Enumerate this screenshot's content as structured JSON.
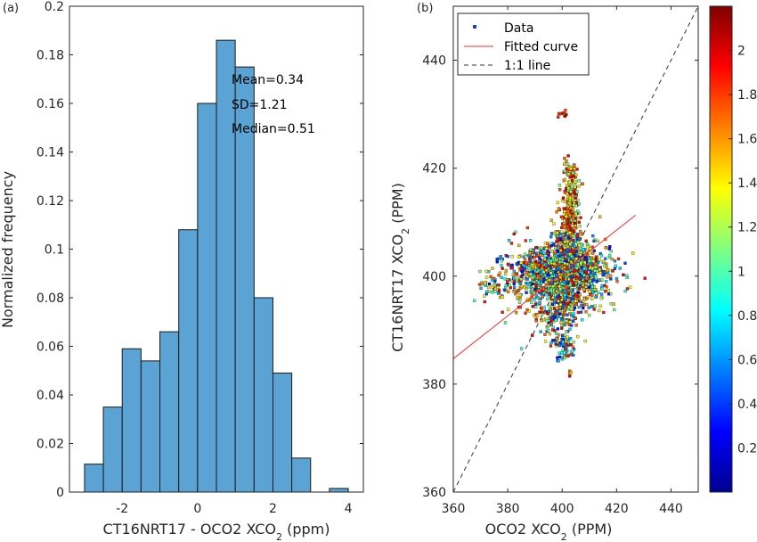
{
  "chart_data": [
    {
      "panel_label": "(a)",
      "type": "bar",
      "xlabel_main": "CT16NRT17 - OCO2 XCO",
      "xlabel_sub": "2",
      "xlabel_unit": " (ppm)",
      "ylabel": "Normalized frequency",
      "xlim": [
        -3.4,
        4.4
      ],
      "ylim": [
        0,
        0.2
      ],
      "xticks": [
        -2,
        0,
        2,
        4
      ],
      "xtick_labels": [
        "-2",
        "0",
        "2",
        "4"
      ],
      "yticks": [
        0,
        0.02,
        0.04,
        0.06,
        0.08,
        0.1,
        0.12,
        0.14,
        0.16,
        0.18,
        0.2
      ],
      "ytick_labels": [
        "0",
        "0.02",
        "0.04",
        "0.06",
        "0.08",
        "0.1",
        "0.12",
        "0.14",
        "0.16",
        "0.18",
        "0.2"
      ],
      "bin_edges": [
        -3.0,
        -2.5,
        -2.0,
        -1.5,
        -1.0,
        -0.5,
        0.0,
        0.5,
        1.0,
        1.5,
        2.0,
        2.5,
        3.0,
        3.5,
        4.0
      ],
      "values": [
        0.0115,
        0.035,
        0.059,
        0.054,
        0.066,
        0.108,
        0.16,
        0.186,
        0.175,
        0.08,
        0.049,
        0.014,
        0,
        0.0015
      ],
      "annotations": [
        "Mean=0.34",
        "SD=1.21",
        "Median=0.51"
      ],
      "bar_color": "#5ba3d4",
      "grid": false
    },
    {
      "panel_label": "(b)",
      "type": "scatter",
      "xlabel_main": "OCO2 XCO",
      "xlabel_sub": "2",
      "xlabel_unit": "  (PPM)",
      "ylabel_main": "CT16NRT17 XCO",
      "ylabel_sub": "2",
      "ylabel_unit": "  (PPM)",
      "xlim": [
        360,
        450
      ],
      "ylim": [
        360,
        450
      ],
      "xticks": [
        360,
        380,
        400,
        420,
        440
      ],
      "xtick_labels": [
        "360",
        "380",
        "400",
        "420",
        "440"
      ],
      "yticks": [
        360,
        380,
        400,
        420,
        440
      ],
      "ytick_labels": [
        "360",
        "380",
        "400",
        "420",
        "440"
      ],
      "fitted_curve": {
        "x": [
          360,
          427
        ],
        "y": [
          384.7,
          411.3
        ]
      },
      "one_to_one": {
        "x": [
          360,
          450
        ],
        "y": [
          360,
          450
        ]
      },
      "legend": [
        "Data",
        "Fitted curve",
        "1:1 line"
      ],
      "legend_position": "top-left",
      "colorbar": {
        "range": [
          0,
          2.2
        ],
        "ticks": [
          0.2,
          0.4,
          0.6,
          0.8,
          1,
          1.2,
          1.4,
          1.6,
          1.8,
          2
        ],
        "tick_labels": [
          "0.2",
          "0.4",
          "0.6",
          "0.8",
          "1",
          "1.2",
          "1.4",
          "1.6",
          "1.8",
          "2"
        ]
      },
      "scatter_clusters": [
        {
          "x": 399,
          "y": 400,
          "sx": 9,
          "sy": 3.2,
          "n": 900
        },
        {
          "x": 401,
          "y": 398,
          "sx": 3,
          "sy": 4.5,
          "n": 350
        },
        {
          "x": 402,
          "y": 405,
          "sx": 2.5,
          "sy": 5,
          "n": 250
        },
        {
          "x": 403,
          "y": 413,
          "sx": 1.6,
          "sy": 3.5,
          "n": 140
        },
        {
          "x": 403,
          "y": 419,
          "sx": 1.2,
          "sy": 1.5,
          "n": 40
        },
        {
          "x": 393,
          "y": 401,
          "sx": 7,
          "sy": 2.2,
          "n": 250
        },
        {
          "x": 408,
          "y": 402,
          "sx": 5,
          "sy": 2.2,
          "n": 220
        },
        {
          "x": 397,
          "y": 392,
          "sx": 3,
          "sy": 2,
          "n": 80
        },
        {
          "x": 400,
          "y": 387.5,
          "sx": 2,
          "sy": 0.6,
          "n": 40
        },
        {
          "x": 401,
          "y": 385.5,
          "sx": 2,
          "sy": 0.4,
          "n": 20
        },
        {
          "x": 400.5,
          "y": 430,
          "sx": 1,
          "sy": 0.3,
          "n": 10
        },
        {
          "x": 403,
          "y": 382,
          "sx": 0.4,
          "sy": 0.2,
          "n": 4
        },
        {
          "x": 373,
          "y": 398,
          "sx": 4,
          "sy": 1.5,
          "n": 40
        }
      ]
    }
  ]
}
